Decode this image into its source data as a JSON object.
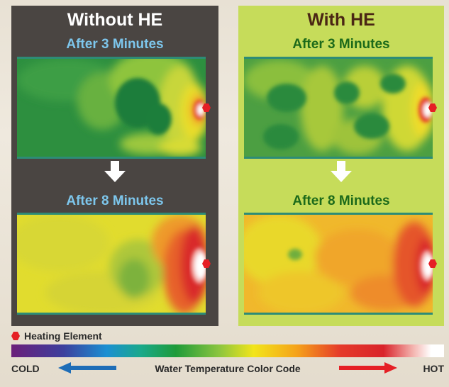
{
  "left_panel": {
    "title": "Without HE",
    "label_top": "After 3 Minutes",
    "label_bottom": "After 8 Minutes"
  },
  "right_panel": {
    "title": "With HE",
    "label_top": "After 3 Minutes",
    "label_bottom": "After 8 Minutes"
  },
  "legend": {
    "heating_element": "Heating Element",
    "cold": "COLD",
    "caption": "Water Temperature Color Code",
    "hot": "HOT"
  },
  "colors": {
    "dark_panel": "#4a4542",
    "lime_panel": "#c6dc5a",
    "heating_element": "#e51f25",
    "cold_arrow": "#1e6db7",
    "hot_arrow": "#e51f25"
  }
}
